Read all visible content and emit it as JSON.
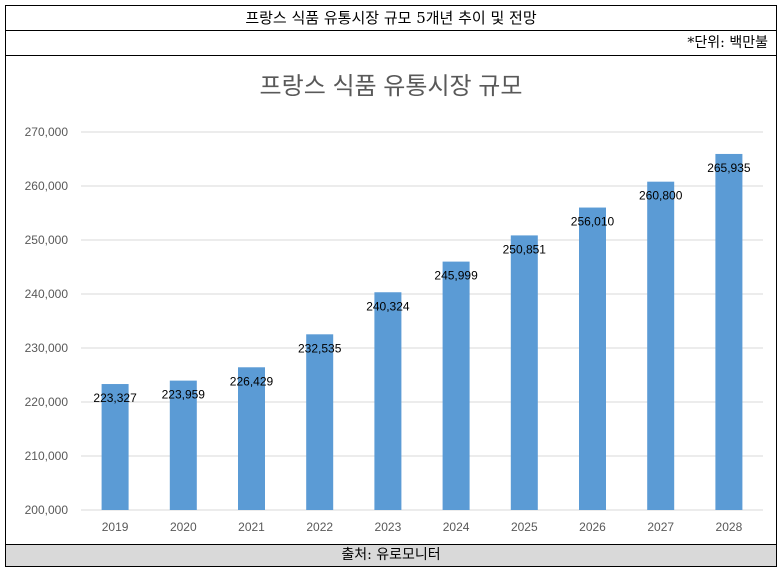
{
  "header": {
    "title": "프랑스 식품 유통시장 규모 5개년 추이 및 전망",
    "unit": "*단위: 백만불"
  },
  "footer": {
    "source": "출처: 유로모니터"
  },
  "colors": {
    "bar": "#5b9bd5",
    "grid": "#d9d9d9",
    "axis_text": "#595959",
    "title_text": "#595959"
  },
  "chart_data": {
    "type": "bar",
    "title": "프랑스 식품 유통시장 규모",
    "xlabel": "",
    "ylabel": "",
    "categories": [
      "2019",
      "2020",
      "2021",
      "2022",
      "2023",
      "2024",
      "2025",
      "2026",
      "2027",
      "2028"
    ],
    "values": [
      223327,
      223959,
      226429,
      232535,
      240324,
      245999,
      250851,
      256010,
      260800,
      265935
    ],
    "value_labels": [
      "223,327",
      "223,959",
      "226,429",
      "232,535",
      "240,324",
      "245,999",
      "250,851",
      "256,010",
      "260,800",
      "265,935"
    ],
    "ylim": [
      200000,
      270000
    ],
    "yticks": [
      200000,
      210000,
      220000,
      230000,
      240000,
      250000,
      260000,
      270000
    ],
    "ytick_labels": [
      "200,000",
      "210,000",
      "220,000",
      "230,000",
      "240,000",
      "250,000",
      "260,000",
      "270,000"
    ],
    "grid": true,
    "legend": "none"
  }
}
